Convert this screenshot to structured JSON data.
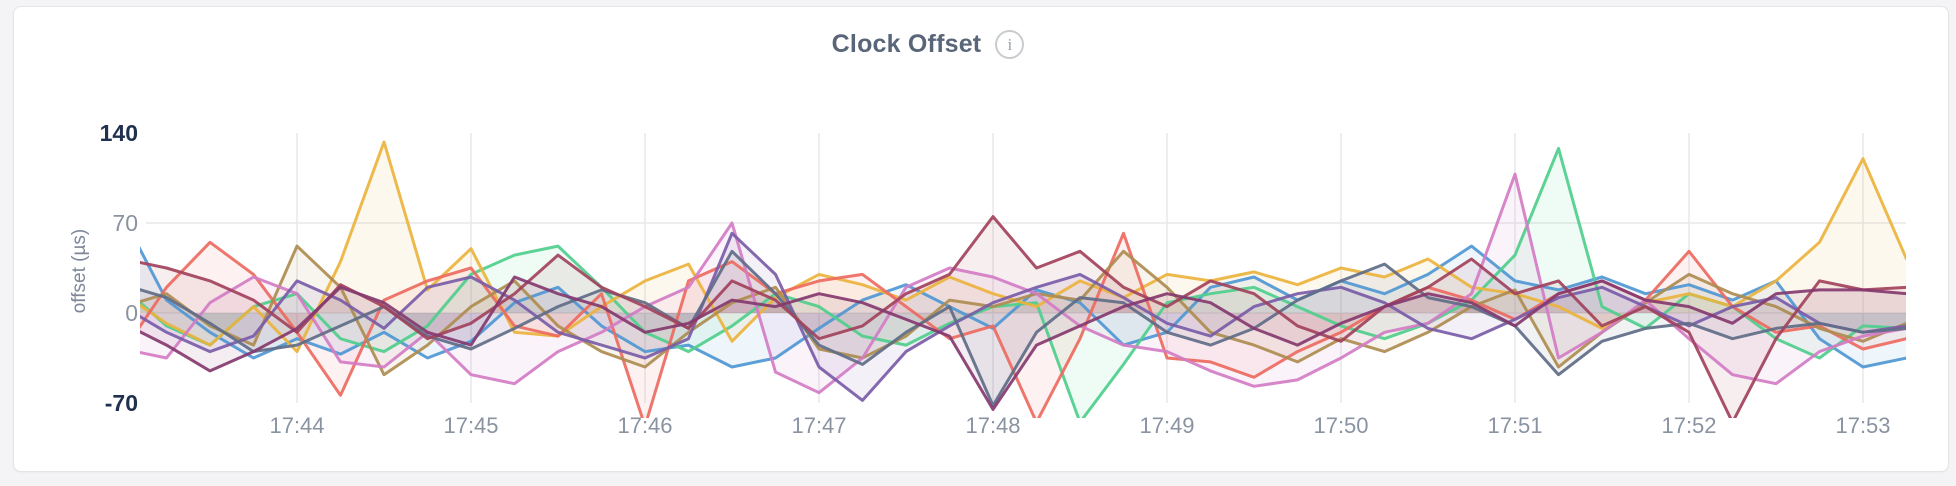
{
  "page": {
    "background": "#f4f4f6"
  },
  "card": {
    "background": "#ffffff",
    "border_color": "#e4e5e7"
  },
  "header": {
    "title": "Clock Offset",
    "info_icon_glyph": "i"
  },
  "chart_data": {
    "type": "line",
    "title": "Clock Offset",
    "xlabel": "",
    "ylabel": "offset (µs)",
    "ylim": [
      -70,
      140
    ],
    "grid": {
      "vertical": true,
      "horizontal_at_values": [
        70,
        0
      ],
      "color": "#e8e8ea"
    },
    "legend_position": "none",
    "axis_text_color": "#8a93a2",
    "axis_maxmin_text_color": "#20304f",
    "y_ticks": [
      {
        "label": "140",
        "value": 140,
        "emphasis": true
      },
      {
        "label": "70",
        "value": 70,
        "emphasis": false
      },
      {
        "label": "0",
        "value": 0,
        "emphasis": false
      },
      {
        "label": "-70",
        "value": -70,
        "emphasis": true
      }
    ],
    "x_ticks": [
      {
        "label": "17:44",
        "min": 1
      },
      {
        "label": "17:45",
        "min": 2
      },
      {
        "label": "17:46",
        "min": 3
      },
      {
        "label": "17:47",
        "min": 4
      },
      {
        "label": "17:48",
        "min": 5
      },
      {
        "label": "17:49",
        "min": 6
      },
      {
        "label": "17:50",
        "min": 7
      },
      {
        "label": "17:51",
        "min": 8
      },
      {
        "label": "17:52",
        "min": 9
      },
      {
        "label": "17:53",
        "min": 10
      }
    ],
    "x_start_min": 0,
    "x_step_min": 0.25,
    "fill_opacity": 0.09,
    "line_width": 3,
    "unit": "µs",
    "series": [
      {
        "name": "blue",
        "color": "#4F97D3",
        "values": [
          75,
          10,
          -15,
          -35,
          -20,
          -32,
          -15,
          -35,
          -22,
          8,
          20,
          -10,
          -30,
          -25,
          -42,
          -35,
          -12,
          10,
          22,
          5,
          -12,
          18,
          8,
          -25,
          -15,
          20,
          28,
          10,
          25,
          15,
          30,
          52,
          25,
          18,
          28,
          15,
          22,
          10,
          25,
          -20,
          -42,
          -35
        ]
      },
      {
        "name": "green",
        "color": "#4FCE8C",
        "values": [
          20,
          -10,
          -25,
          5,
          15,
          -20,
          -30,
          -10,
          30,
          45,
          52,
          20,
          -15,
          -30,
          -10,
          15,
          5,
          -18,
          -25,
          -8,
          5,
          8,
          -85,
          -40,
          8,
          15,
          20,
          5,
          -10,
          -20,
          -8,
          10,
          45,
          128,
          5,
          -12,
          15,
          5,
          -20,
          -35,
          -10,
          -12
        ]
      },
      {
        "name": "gold",
        "color": "#EBB33D",
        "values": [
          15,
          -8,
          -25,
          5,
          -30,
          40,
          133,
          18,
          50,
          -15,
          -18,
          5,
          25,
          38,
          -22,
          12,
          30,
          22,
          10,
          28,
          15,
          5,
          25,
          12,
          30,
          25,
          32,
          22,
          35,
          28,
          42,
          20,
          15,
          5,
          -12,
          8,
          15,
          5,
          25,
          55,
          120,
          42
        ]
      },
      {
        "name": "red",
        "color": "#ED6A5F",
        "values": [
          -30,
          20,
          55,
          30,
          -15,
          -64,
          10,
          25,
          35,
          -10,
          -18,
          15,
          -88,
          25,
          40,
          15,
          25,
          30,
          5,
          -20,
          -10,
          -85,
          -20,
          62,
          -35,
          -38,
          -50,
          -30,
          -15,
          5,
          20,
          10,
          -5,
          15,
          25,
          10,
          48,
          5,
          -15,
          -10,
          -28,
          -20
        ]
      },
      {
        "name": "olive",
        "color": "#AE8C50",
        "values": [
          5,
          15,
          -10,
          -25,
          52,
          20,
          -48,
          -25,
          5,
          25,
          -10,
          -30,
          -42,
          -15,
          8,
          20,
          -28,
          -35,
          -18,
          10,
          5,
          15,
          10,
          48,
          20,
          -15,
          -25,
          -38,
          -20,
          -30,
          -15,
          5,
          18,
          -42,
          -15,
          8,
          30,
          15,
          5,
          -12,
          -22,
          -8
        ]
      },
      {
        "name": "orchid",
        "color": "#D27CC4",
        "values": [
          -28,
          -35,
          8,
          28,
          15,
          -38,
          -42,
          -15,
          -48,
          -55,
          -30,
          -15,
          5,
          20,
          70,
          -46,
          -62,
          -35,
          20,
          35,
          28,
          15,
          -10,
          -25,
          -30,
          -45,
          -57,
          -52,
          -35,
          -15,
          -8,
          15,
          108,
          -35,
          -15,
          10,
          -20,
          -48,
          -55,
          -30,
          -18,
          -12
        ]
      },
      {
        "name": "violet",
        "color": "#7A5CA8",
        "values": [
          5,
          -15,
          -30,
          -18,
          25,
          10,
          -12,
          20,
          28,
          10,
          -15,
          -25,
          -35,
          -20,
          62,
          30,
          -42,
          -68,
          -30,
          -10,
          8,
          20,
          30,
          12,
          -8,
          -18,
          5,
          15,
          20,
          8,
          -12,
          -20,
          -5,
          12,
          20,
          5,
          -10,
          5,
          12,
          -8,
          -15,
          -10
        ]
      },
      {
        "name": "slate",
        "color": "#5F6C87",
        "values": [
          22,
          12,
          -8,
          -30,
          -25,
          -10,
          5,
          -18,
          -28,
          -12,
          5,
          18,
          8,
          -12,
          48,
          15,
          -25,
          -40,
          -15,
          5,
          -72,
          -15,
          12,
          8,
          -15,
          -25,
          -12,
          10,
          25,
          38,
          12,
          5,
          -10,
          -48,
          -22,
          -12,
          -8,
          -20,
          -12,
          -8,
          -15,
          -12
        ]
      },
      {
        "name": "maroon",
        "color": "#A2425C",
        "values": [
          42,
          35,
          25,
          10,
          -15,
          22,
          5,
          -20,
          -8,
          15,
          45,
          20,
          5,
          -12,
          25,
          10,
          -20,
          -10,
          15,
          30,
          75,
          35,
          48,
          20,
          5,
          25,
          15,
          -10,
          -22,
          5,
          20,
          42,
          15,
          25,
          -10,
          5,
          -15,
          -85,
          -20,
          25,
          18,
          20
        ]
      },
      {
        "name": "plum",
        "color": "#84396F",
        "values": [
          -8,
          -25,
          -45,
          -30,
          -12,
          20,
          8,
          -15,
          -25,
          28,
          15,
          5,
          -15,
          -8,
          10,
          5,
          15,
          8,
          -5,
          -18,
          -75,
          -25,
          -10,
          5,
          15,
          8,
          -12,
          -25,
          -8,
          5,
          15,
          8,
          -10,
          15,
          25,
          10,
          5,
          -8,
          15,
          18,
          18,
          15
        ]
      }
    ]
  }
}
